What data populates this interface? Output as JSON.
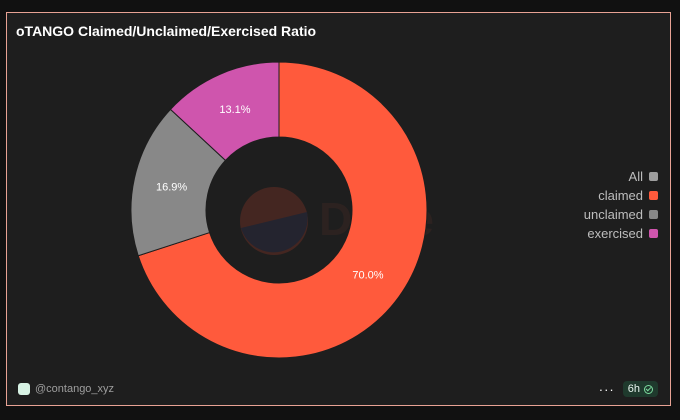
{
  "card": {
    "title": "oTANGO Claimed/Unclaimed/Exercised Ratio",
    "author": "@contango_xyz",
    "refresh_badge": "6h",
    "more_label": "···",
    "watermark": "Dune"
  },
  "legend": [
    {
      "label": "All",
      "color": "#9e9e9e"
    },
    {
      "label": "claimed",
      "color": "#ff5a3c"
    },
    {
      "label": "unclaimed",
      "color": "#888888"
    },
    {
      "label": "exercised",
      "color": "#cf55ad"
    }
  ],
  "chart_data": {
    "type": "pie",
    "style": "donut",
    "categories": [
      "claimed",
      "unclaimed",
      "exercised"
    ],
    "values": [
      70.0,
      16.9,
      13.1
    ],
    "labels": [
      "70.0%",
      "16.9%",
      "13.1%"
    ],
    "colors": [
      "#ff5a3c",
      "#888888",
      "#cf55ad"
    ],
    "title": "oTANGO Claimed/Unclaimed/Exercised Ratio",
    "legend_position": "right"
  }
}
